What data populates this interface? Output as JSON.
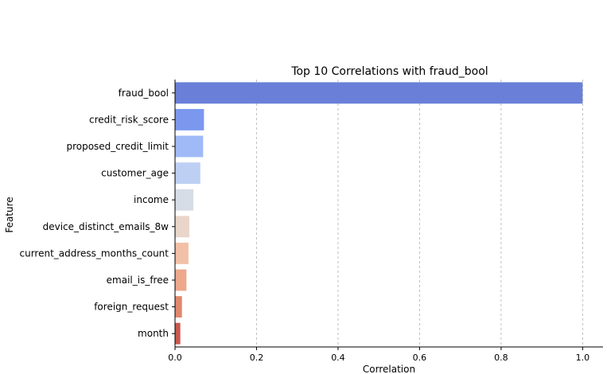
{
  "chart_data": {
    "type": "bar",
    "orientation": "horizontal",
    "title": "Top 10 Correlations with fraud_bool",
    "xlabel": "Correlation",
    "ylabel": "Feature",
    "xlim": [
      0,
      1.05
    ],
    "xticks": [
      0.0,
      0.2,
      0.4,
      0.6,
      0.8,
      1.0
    ],
    "xtick_labels": [
      "0.0",
      "0.2",
      "0.4",
      "0.6",
      "0.8",
      "1.0"
    ],
    "grid": "x-dashed",
    "categories": [
      "fraud_bool",
      "credit_risk_score",
      "proposed_credit_limit",
      "customer_age",
      "income",
      "device_distinct_emails_8w",
      "current_address_months_count",
      "email_is_free",
      "foreign_request",
      "month"
    ],
    "values": [
      1.0,
      0.071,
      0.069,
      0.062,
      0.045,
      0.035,
      0.033,
      0.028,
      0.017,
      0.013
    ],
    "colors": [
      "#6a80d8",
      "#7b98ee",
      "#9fbaf6",
      "#bdd0f3",
      "#d6dce6",
      "#e9d5c9",
      "#f2c0a6",
      "#eea88b",
      "#e2876d",
      "#c9584d"
    ]
  }
}
